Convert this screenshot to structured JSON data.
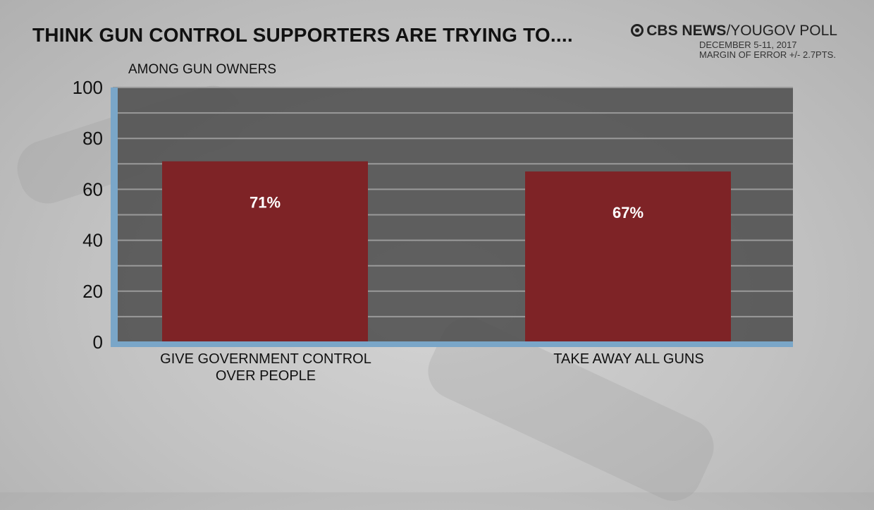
{
  "header": {
    "title": "THINK GUN CONTROL SUPPORTERS ARE TRYING TO....",
    "subtitle": "AMONG GUN OWNERS"
  },
  "source": {
    "brand": "CBS NEWS",
    "poll": "/YOUGOV POLL",
    "date": "DECEMBER 5-11, 2017",
    "margin": "MARGIN OF ERROR +/- 2.7PTS."
  },
  "chart_data": {
    "type": "bar",
    "title": "THINK GUN CONTROL SUPPORTERS ARE TRYING TO....",
    "subtitle": "AMONG GUN OWNERS",
    "categories": [
      "GIVE GOVERNMENT CONTROL OVER PEOPLE",
      "TAKE AWAY ALL GUNS"
    ],
    "values": [
      71,
      67
    ],
    "data_labels": [
      "71%",
      "67%"
    ],
    "ylim": [
      0,
      100
    ],
    "yticks": [
      "0",
      "20",
      "40",
      "60",
      "80",
      "100"
    ],
    "grid": true,
    "colors": {
      "bar": "#7e2326",
      "plot_bg": "#555555",
      "axis": "#7aa6c8"
    }
  }
}
